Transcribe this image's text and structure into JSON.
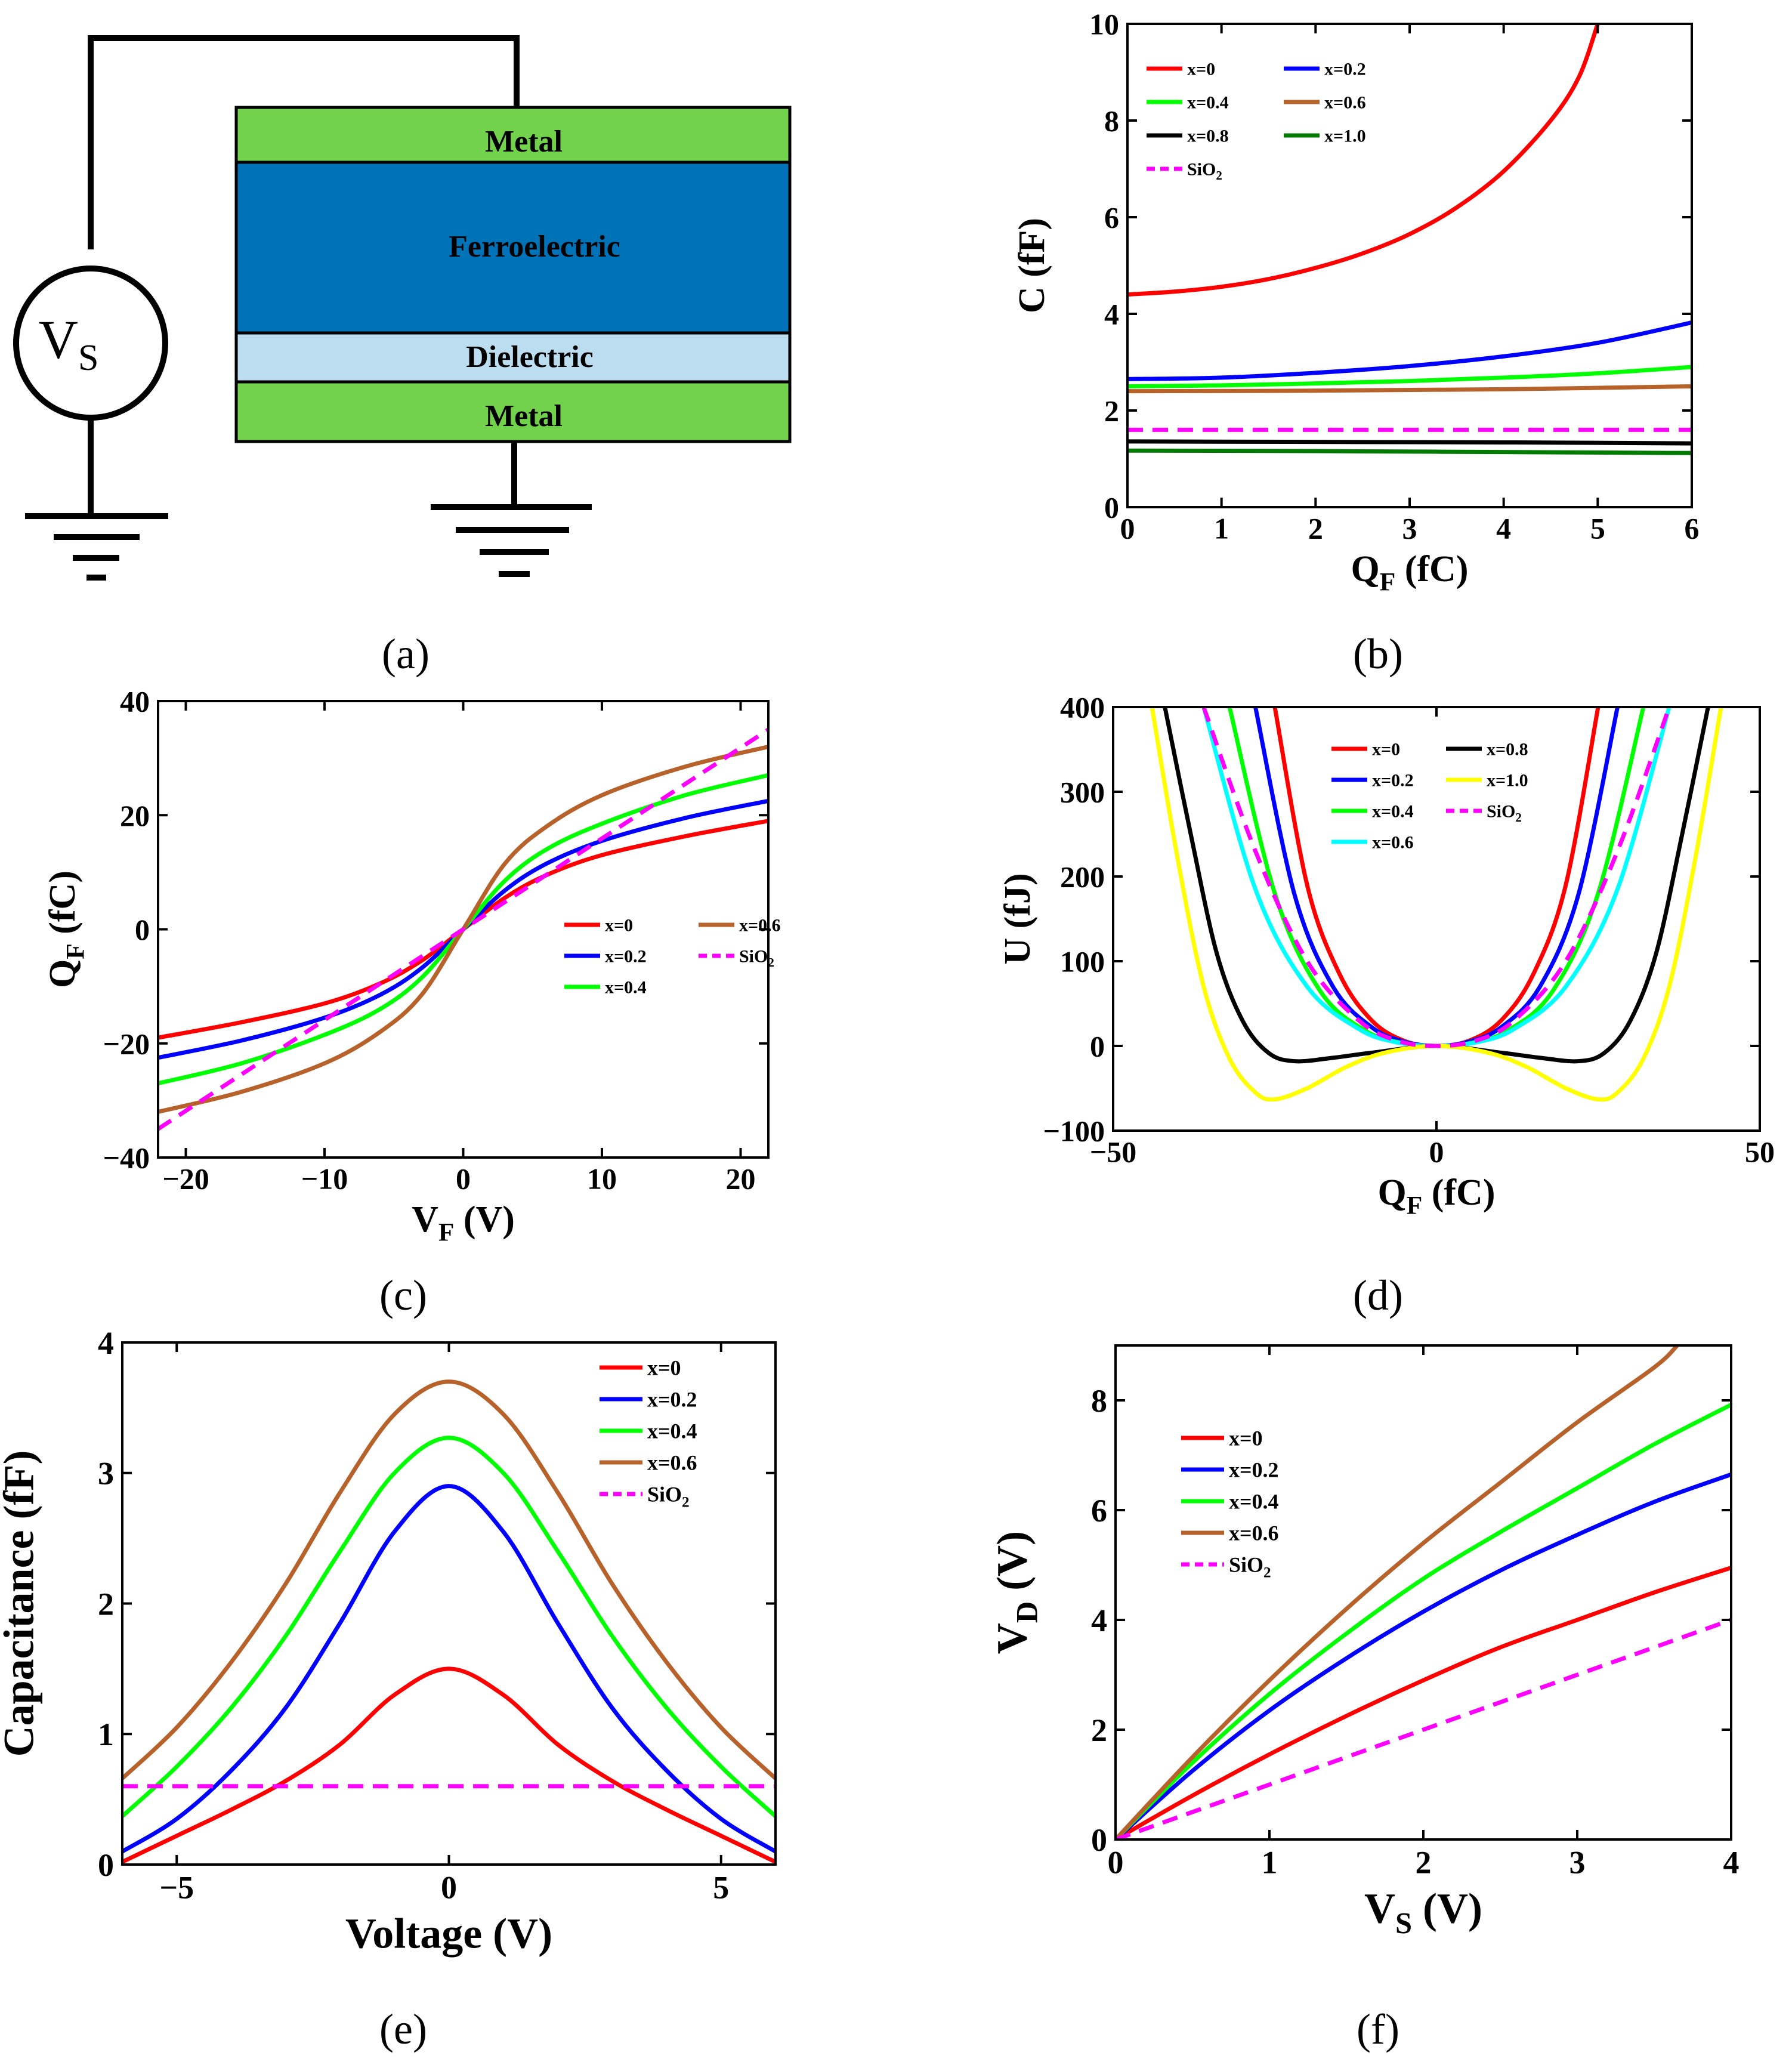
{
  "colors": {
    "red": "#ff0000",
    "blue": "#0000ff",
    "green": "#00ff00",
    "brown": "#b8622b",
    "black": "#000000",
    "darkgreen": "#007a00",
    "magenta": "#ff00ff",
    "yellow": "#ffff00",
    "cyan": "#00ffff",
    "metal": "#72d24b",
    "ferro": "#0073b8",
    "dielectric": "#bcdcf0"
  },
  "diagram": {
    "source_label": "V",
    "source_sub": "S",
    "layers": [
      "Metal",
      "Ferroelectric",
      "Dielectric",
      "Metal"
    ],
    "caption": "(a)"
  },
  "captions": {
    "b": "(b)",
    "c": "(c)",
    "d": "(d)",
    "e": "(e)",
    "f": "(f)"
  },
  "chart_data": [
    {
      "id": "b",
      "type": "line",
      "xlabel": "Q",
      "xlabel_sub": "F",
      "xlabel_unit": " (fC)",
      "ylabel": "C (fF)",
      "xlim": [
        0,
        6
      ],
      "ylim": [
        0,
        10
      ],
      "xticks": [
        0,
        1,
        2,
        3,
        4,
        5,
        6
      ],
      "xtick_labels": [
        "0",
        "1",
        "2",
        "3",
        "4",
        "5",
        "6"
      ],
      "yticks": [
        0,
        2,
        4,
        6,
        8,
        10
      ],
      "ytick_labels": [
        "0",
        "2",
        "4",
        "6",
        "8",
        "10"
      ],
      "series": [
        {
          "name": "x=0",
          "color": "red",
          "x": [
            0,
            0.5,
            1,
            1.5,
            2,
            2.5,
            3,
            3.5,
            4,
            4.5,
            4.8,
            5.0
          ],
          "y": [
            4.4,
            4.46,
            4.56,
            4.72,
            4.95,
            5.25,
            5.65,
            6.2,
            6.95,
            8.0,
            8.9,
            10.0
          ]
        },
        {
          "name": "x=0.2",
          "color": "blue",
          "x": [
            0,
            1,
            2,
            3,
            4,
            5,
            6
          ],
          "y": [
            2.65,
            2.68,
            2.78,
            2.92,
            3.12,
            3.4,
            3.82
          ]
        },
        {
          "name": "x=0.4",
          "color": "green",
          "x": [
            0,
            1,
            2,
            3,
            4,
            5,
            6
          ],
          "y": [
            2.5,
            2.52,
            2.56,
            2.61,
            2.68,
            2.77,
            2.9
          ]
        },
        {
          "name": "x=0.6",
          "color": "brown",
          "x": [
            0,
            2,
            4,
            6
          ],
          "y": [
            2.4,
            2.41,
            2.44,
            2.5
          ]
        },
        {
          "name": "x=0.8",
          "color": "black",
          "x": [
            0,
            2,
            4,
            6
          ],
          "y": [
            1.36,
            1.35,
            1.34,
            1.32
          ]
        },
        {
          "name": "x=1.0",
          "color": "darkgreen",
          "x": [
            0,
            2,
            4,
            6
          ],
          "y": [
            1.17,
            1.16,
            1.14,
            1.12
          ]
        },
        {
          "name": "SiO",
          "sub": "2",
          "color": "magenta",
          "dashed": true,
          "x": [
            0,
            6
          ],
          "y": [
            1.6,
            1.6
          ]
        }
      ],
      "legend": [
        [
          "x=0",
          "x=0.4",
          "x=0.8",
          "SiO"
        ],
        [
          "x=0.2",
          "x=0.6",
          "x=1.0"
        ]
      ]
    },
    {
      "id": "c",
      "type": "line",
      "xlabel": "V",
      "xlabel_sub": "F",
      "xlabel_unit": " (V)",
      "ylabel": "Q",
      "ylabel_sub": "F",
      "ylabel_unit": " (fC)",
      "xlim": [
        -22,
        22
      ],
      "ylim": [
        -40,
        40
      ],
      "xticks": [
        -20,
        -10,
        0,
        10,
        20
      ],
      "xtick_labels": [
        "−20",
        "−10",
        "0",
        "10",
        "20"
      ],
      "yticks": [
        -40,
        -20,
        0,
        20,
        40
      ],
      "ytick_labels": [
        "−40",
        "−20",
        "0",
        "20",
        "40"
      ],
      "series": [
        {
          "name": "x=0",
          "color": "red",
          "x": [
            -22,
            -16,
            -10,
            -6,
            -3,
            0,
            3,
            6,
            10,
            16,
            22
          ],
          "y": [
            -19,
            -16.3,
            -13,
            -9.5,
            -5.5,
            0,
            5.5,
            9.5,
            13,
            16.3,
            19
          ]
        },
        {
          "name": "x=0.2",
          "color": "blue",
          "x": [
            -22,
            -16,
            -10,
            -6,
            -3,
            0,
            3,
            6,
            10,
            16,
            22
          ],
          "y": [
            -22.5,
            -19.5,
            -15.5,
            -11.5,
            -6.8,
            0,
            6.8,
            11.5,
            15.5,
            19.5,
            22.5
          ]
        },
        {
          "name": "x=0.4",
          "color": "green",
          "x": [
            -22,
            -16,
            -10,
            -6,
            -3,
            0,
            3,
            6,
            10,
            16,
            22
          ],
          "y": [
            -27,
            -23.5,
            -18.5,
            -14,
            -8.5,
            0,
            8.5,
            14,
            18.5,
            23.5,
            27
          ]
        },
        {
          "name": "x=0.6",
          "color": "brown",
          "x": [
            -22,
            -16,
            -10,
            -6,
            -3,
            0,
            3,
            6,
            10,
            16,
            22
          ],
          "y": [
            -32,
            -28.5,
            -23.5,
            -18,
            -11.5,
            0,
            11.5,
            18,
            23.5,
            28.5,
            32
          ]
        },
        {
          "name": "SiO",
          "sub": "2",
          "color": "magenta",
          "dashed": true,
          "x": [
            -22,
            22
          ],
          "y": [
            -35,
            35
          ]
        }
      ],
      "legend": [
        [
          "x=0",
          "x=0.2",
          "x=0.4"
        ],
        [
          "x=0.6",
          "SiO"
        ]
      ]
    },
    {
      "id": "d",
      "type": "line",
      "xlabel": "Q",
      "xlabel_sub": "F",
      "xlabel_unit": " (fC)",
      "ylabel": "U (fJ)",
      "xlim": [
        -50,
        50
      ],
      "ylim": [
        -100,
        400
      ],
      "xticks": [
        -50,
        0,
        50
      ],
      "xtick_labels": [
        "−50",
        "0",
        "50"
      ],
      "yticks": [
        -100,
        0,
        100,
        200,
        300,
        400
      ],
      "ytick_labels": [
        "−100",
        "0",
        "100",
        "200",
        "300",
        "400"
      ],
      "series": [
        {
          "name": "x=0",
          "color": "red",
          "dashed": false,
          "x": [
            -25,
            -20,
            -15,
            -10,
            -5,
            0,
            5,
            10,
            15,
            20,
            25
          ],
          "y": [
            400,
            190,
            85,
            30,
            6,
            0,
            6,
            30,
            85,
            190,
            400
          ]
        },
        {
          "name": "x=0.2",
          "color": "blue",
          "x": [
            -28,
            -22,
            -16,
            -10,
            -5,
            0,
            5,
            10,
            16,
            22,
            28
          ],
          "y": [
            400,
            180,
            70,
            22,
            5,
            0,
            5,
            22,
            70,
            180,
            400
          ]
        },
        {
          "name": "x=0.4",
          "color": "green",
          "x": [
            -32,
            -25,
            -18,
            -11,
            -5,
            0,
            5,
            11,
            18,
            25,
            32
          ],
          "y": [
            400,
            180,
            65,
            18,
            3,
            0,
            3,
            18,
            65,
            180,
            400
          ]
        },
        {
          "name": "x=0.6",
          "color": "cyan",
          "x": [
            -36,
            -28,
            -20,
            -12,
            -6,
            0,
            6,
            12,
            20,
            28,
            36
          ],
          "y": [
            400,
            185,
            70,
            20,
            4,
            0,
            4,
            20,
            70,
            185,
            400
          ]
        },
        {
          "name": "x=0.8",
          "color": "black",
          "x": [
            -42,
            -38,
            -34,
            -30,
            -26,
            -22,
            -16,
            -10,
            0,
            10,
            16,
            22,
            26,
            30,
            34,
            38,
            42
          ],
          "y": [
            400,
            250,
            110,
            30,
            -8,
            -18,
            -14,
            -8,
            0,
            -8,
            -14,
            -18,
            -8,
            30,
            110,
            250,
            400
          ]
        },
        {
          "name": "x=1.0",
          "color": "yellow",
          "x": [
            -44,
            -40,
            -36,
            -32,
            -28,
            -25,
            -20,
            -14,
            -8,
            0,
            8,
            14,
            20,
            25,
            28,
            32,
            36,
            40,
            44
          ],
          "y": [
            400,
            220,
            70,
            -15,
            -55,
            -63,
            -50,
            -25,
            -8,
            0,
            -8,
            -25,
            -50,
            -63,
            -55,
            -15,
            70,
            220,
            400
          ]
        },
        {
          "name": "SiO",
          "sub": "2",
          "color": "magenta",
          "dashed": true,
          "x": [
            -36,
            -28,
            -20,
            -12,
            -6,
            0,
            6,
            12,
            20,
            28,
            36
          ],
          "y": [
            400,
            230,
            100,
            30,
            6,
            0,
            6,
            30,
            100,
            230,
            400
          ]
        }
      ],
      "legend": [
        [
          "x=0",
          "x=0.2",
          "x=0.4",
          "x=0.6"
        ],
        [
          "x=0.8",
          "x=1.0",
          "SiO"
        ]
      ]
    },
    {
      "id": "e",
      "type": "line",
      "xlabel": "Voltage (V)",
      "ylabel": "Capacitance (fF)",
      "xlim": [
        -6,
        6
      ],
      "ylim": [
        0,
        4
      ],
      "xticks": [
        -5,
        0,
        5
      ],
      "xtick_labels": [
        "−5",
        "0",
        "5"
      ],
      "yticks": [
        0,
        1,
        2,
        3,
        4
      ],
      "ytick_labels": [
        "0",
        "1",
        "2",
        "3",
        "4"
      ],
      "series": [
        {
          "name": "x=0",
          "color": "red",
          "x": [
            -6,
            -5,
            -4,
            -3,
            -2,
            -1,
            0,
            1,
            2,
            3,
            4,
            5,
            6
          ],
          "y": [
            0.02,
            0.22,
            0.42,
            0.64,
            0.92,
            1.3,
            1.5,
            1.3,
            0.92,
            0.64,
            0.42,
            0.22,
            0.02
          ]
        },
        {
          "name": "x=0.2",
          "color": "blue",
          "x": [
            -6,
            -5,
            -4,
            -3,
            -2,
            -1,
            0,
            1,
            2,
            3,
            4,
            5,
            6
          ],
          "y": [
            0.1,
            0.35,
            0.72,
            1.2,
            1.85,
            2.55,
            2.9,
            2.55,
            1.85,
            1.2,
            0.72,
            0.35,
            0.1
          ]
        },
        {
          "name": "x=0.4",
          "color": "green",
          "x": [
            -6,
            -5,
            -4,
            -3,
            -2,
            -1,
            0,
            1,
            2,
            3,
            4,
            5,
            6
          ],
          "y": [
            0.37,
            0.75,
            1.2,
            1.75,
            2.4,
            3.0,
            3.27,
            3.0,
            2.4,
            1.75,
            1.2,
            0.75,
            0.37
          ]
        },
        {
          "name": "x=0.6",
          "color": "brown",
          "x": [
            -6,
            -5,
            -4,
            -3,
            -2,
            -1,
            0,
            1,
            2,
            3,
            4,
            5,
            6
          ],
          "y": [
            0.66,
            1.05,
            1.55,
            2.15,
            2.85,
            3.45,
            3.7,
            3.45,
            2.85,
            2.15,
            1.55,
            1.05,
            0.66
          ]
        },
        {
          "name": "SiO",
          "sub": "2",
          "color": "magenta",
          "dashed": true,
          "x": [
            -6,
            6
          ],
          "y": [
            0.6,
            0.6
          ]
        }
      ],
      "legend": [
        [
          "x=0",
          "x=0.2",
          "x=0.4",
          "x=0.6",
          "SiO"
        ]
      ]
    },
    {
      "id": "f",
      "type": "line",
      "xlabel": "V",
      "xlabel_sub": "S",
      "xlabel_unit": " (V)",
      "ylabel": "V",
      "ylabel_sub": "D",
      "ylabel_unit": " (V)",
      "xlim": [
        0,
        4
      ],
      "ylim": [
        0,
        9
      ],
      "xticks": [
        0,
        1,
        2,
        3,
        4
      ],
      "xtick_labels": [
        "0",
        "1",
        "2",
        "3",
        "4"
      ],
      "yticks": [
        0,
        2,
        4,
        6,
        8
      ],
      "ytick_labels": [
        "0",
        "2",
        "4",
        "6",
        "8"
      ],
      "series": [
        {
          "name": "x=0",
          "color": "red",
          "x": [
            0,
            0.5,
            1,
            1.5,
            2,
            2.5,
            3,
            3.5,
            4
          ],
          "y": [
            0,
            0.8,
            1.55,
            2.25,
            2.9,
            3.5,
            4.0,
            4.5,
            4.95
          ]
        },
        {
          "name": "x=0.2",
          "color": "blue",
          "x": [
            0,
            0.5,
            1,
            1.5,
            2,
            2.5,
            3,
            3.5,
            4
          ],
          "y": [
            0,
            1.25,
            2.35,
            3.3,
            4.15,
            4.9,
            5.55,
            6.15,
            6.65
          ]
        },
        {
          "name": "x=0.4",
          "color": "green",
          "x": [
            0,
            0.5,
            1,
            1.5,
            2,
            2.5,
            3,
            3.5,
            4
          ],
          "y": [
            0,
            1.4,
            2.65,
            3.75,
            4.75,
            5.6,
            6.4,
            7.2,
            7.92
          ]
        },
        {
          "name": "x=0.6",
          "color": "brown",
          "x": [
            0,
            0.5,
            1,
            1.5,
            2,
            2.5,
            3,
            3.5,
            3.65
          ],
          "y": [
            0,
            1.5,
            2.9,
            4.2,
            5.4,
            6.5,
            7.6,
            8.6,
            9.0
          ]
        },
        {
          "name": "SiO",
          "sub": "2",
          "color": "magenta",
          "dashed": true,
          "x": [
            0,
            4
          ],
          "y": [
            0,
            4.0
          ]
        }
      ],
      "legend": [
        [
          "x=0",
          "x=0.2",
          "x=0.4",
          "x=0.6",
          "SiO"
        ]
      ]
    }
  ]
}
